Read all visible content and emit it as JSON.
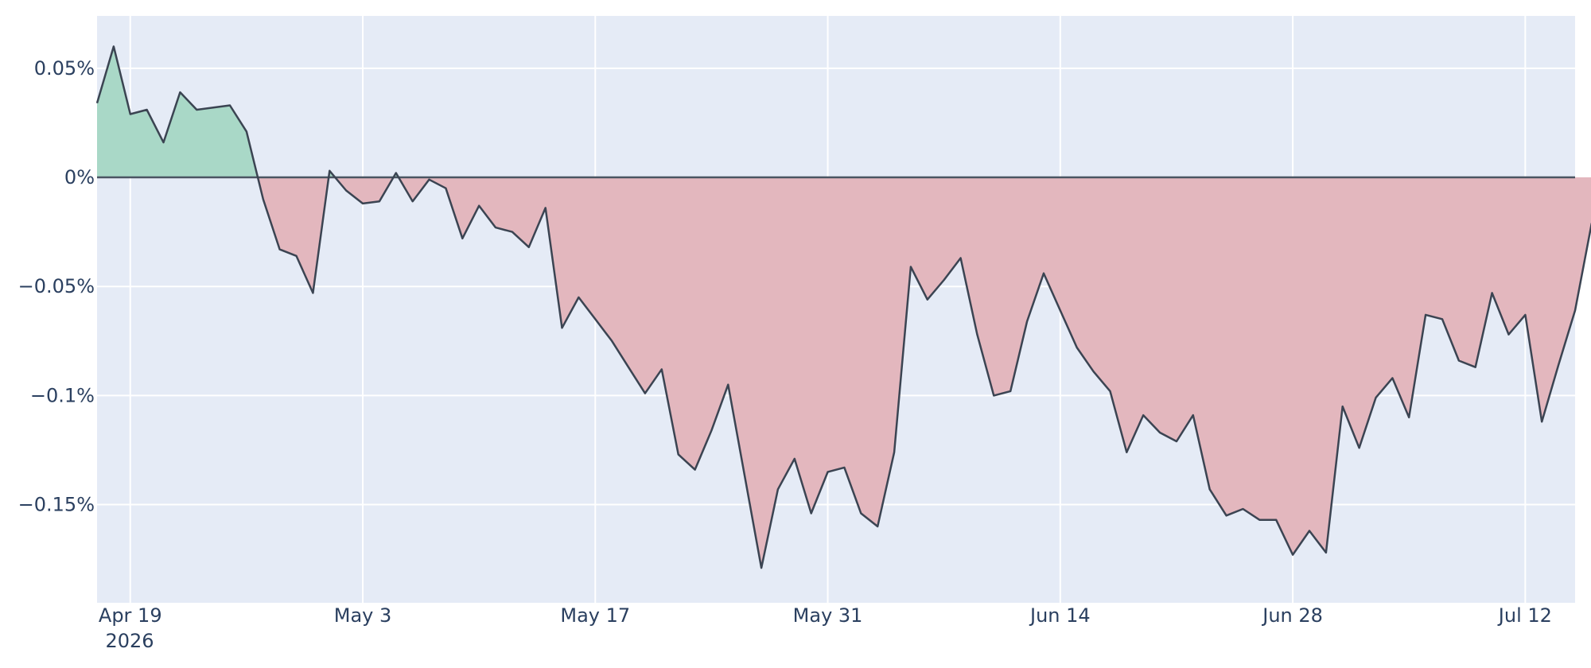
{
  "chart_data": {
    "type": "area",
    "title": "",
    "xlabel": "",
    "ylabel": "",
    "x_start": "2026-04-17",
    "x_step_days": 1,
    "xlim": [
      "2026-04-17",
      "2026-07-15"
    ],
    "ylim": [
      -0.195,
      0.074
    ],
    "yticks": [
      0.05,
      0,
      -0.05,
      -0.1,
      -0.15
    ],
    "ytick_labels": [
      "0.05%",
      "0%",
      "−0.05%",
      "−0.1%",
      "−0.15%"
    ],
    "xticks": [
      "2026-04-19",
      "2026-05-03",
      "2026-05-17",
      "2026-05-31",
      "2026-06-14",
      "2026-06-28",
      "2026-07-12"
    ],
    "xtick_labels": [
      "Apr 19",
      "May 3",
      "May 17",
      "May 31",
      "Jun 14",
      "Jun 28",
      "Jul 12"
    ],
    "xtick_year": "2026",
    "grid": true,
    "legend": "none",
    "values": [
      0.034,
      0.06,
      0.029,
      0.031,
      0.016,
      0.039,
      0.031,
      0.032,
      0.033,
      0.021,
      -0.01,
      -0.033,
      -0.036,
      -0.053,
      0.003,
      -0.006,
      -0.012,
      -0.011,
      0.002,
      -0.011,
      -0.001,
      -0.005,
      -0.028,
      -0.013,
      -0.023,
      -0.025,
      -0.032,
      -0.014,
      -0.069,
      -0.055,
      -0.065,
      -0.075,
      -0.087,
      -0.099,
      -0.088,
      -0.127,
      -0.134,
      -0.116,
      -0.095,
      -0.137,
      -0.179,
      -0.143,
      -0.129,
      -0.154,
      -0.135,
      -0.133,
      -0.154,
      -0.16,
      -0.126,
      -0.041,
      -0.056,
      -0.047,
      -0.037,
      -0.072,
      -0.1,
      -0.098,
      -0.066,
      -0.044,
      -0.061,
      -0.078,
      -0.089,
      -0.098,
      -0.126,
      -0.109,
      -0.117,
      -0.121,
      -0.109,
      -0.143,
      -0.155,
      -0.152,
      -0.157,
      -0.157,
      -0.173,
      -0.162,
      -0.172,
      -0.105,
      -0.124,
      -0.101,
      -0.092,
      -0.11,
      -0.063,
      -0.065,
      -0.084,
      -0.087,
      -0.053,
      -0.072,
      -0.063,
      -0.112,
      -0.086,
      -0.061,
      -0.021
    ],
    "colors": {
      "positive_fill": "#a9d8c7",
      "negative_fill": "#e3b7be",
      "line": "#3b4452",
      "zero_line": "#4a5562",
      "plot_bg": "#e5ebf6",
      "grid": "#ffffff",
      "text": "#2a3f5f"
    }
  }
}
